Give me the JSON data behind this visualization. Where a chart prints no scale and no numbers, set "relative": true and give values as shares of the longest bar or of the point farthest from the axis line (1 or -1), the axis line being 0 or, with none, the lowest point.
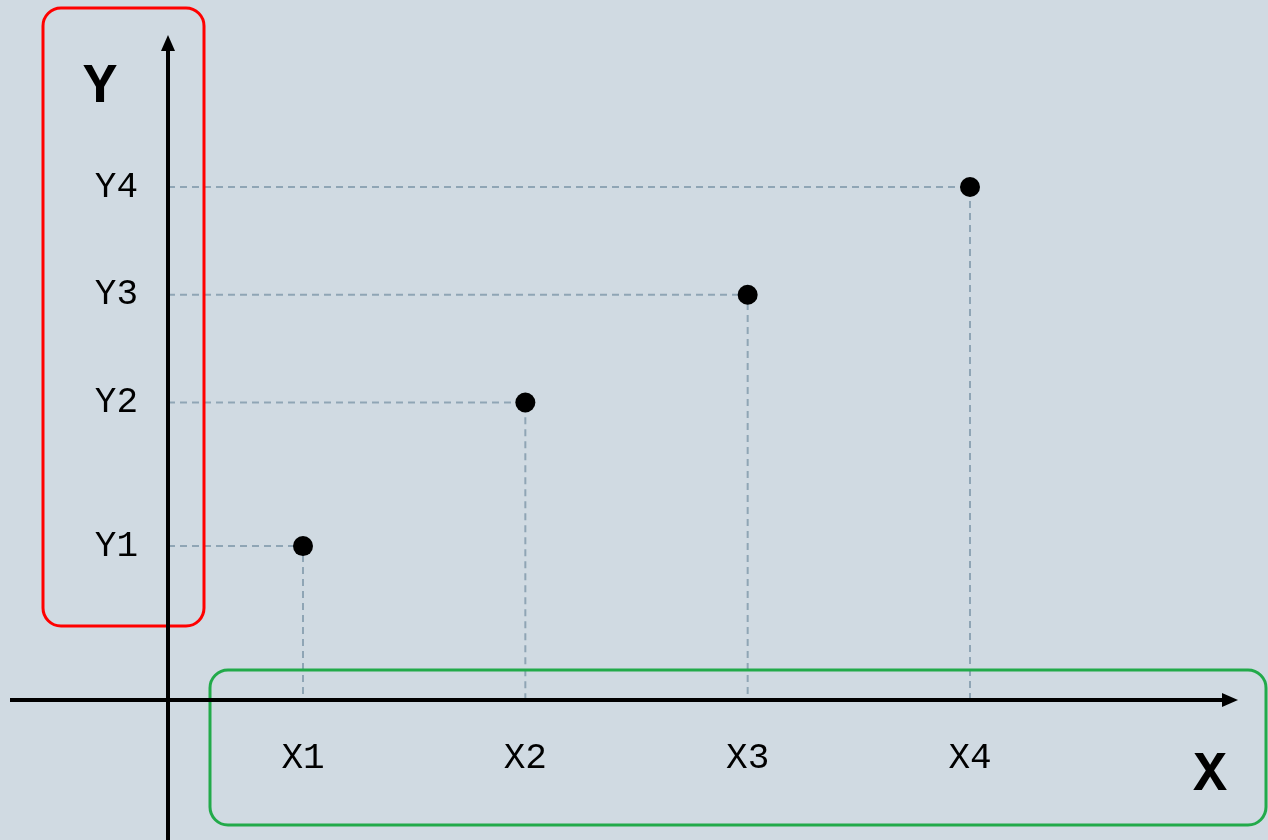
{
  "chart_data": {
    "type": "scatter",
    "xlabel": "X",
    "ylabel": "Y",
    "relative": true,
    "categories": [
      "X1",
      "X2",
      "X3",
      "X4"
    ],
    "values": [
      0.3,
      0.58,
      0.79,
      1
    ],
    "color": "#000000",
    "marker": "circle",
    "annotations": [
      "Y1",
      "Y2",
      "Y3",
      "Y4"
    ]
  }
}
